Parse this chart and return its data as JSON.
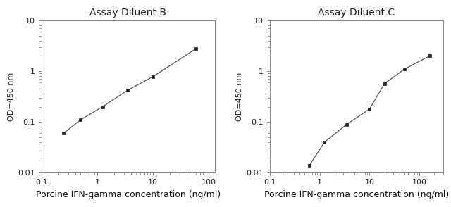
{
  "plot_B": {
    "title": "Assay Diluent B",
    "x": [
      0.25,
      0.5,
      1.25,
      3.5,
      10,
      60
    ],
    "y": [
      0.06,
      0.11,
      0.2,
      0.42,
      0.78,
      2.8
    ],
    "xlim": [
      0.15,
      130
    ],
    "ylim": [
      0.01,
      10
    ],
    "xlabel": "Porcine IFN-gamma concentration (ng/ml)",
    "ylabel": "OD=450 nm",
    "xticks": [
      0.1,
      1,
      10,
      100
    ],
    "xtick_labels": [
      "0.1",
      "1",
      "10",
      "100"
    ],
    "yticks": [
      0.01,
      0.1,
      1,
      10
    ],
    "ytick_labels": [
      "0.01",
      "0.1",
      "1",
      "10"
    ]
  },
  "plot_C": {
    "title": "Assay Diluent C",
    "x": [
      0.625,
      1.25,
      3.5,
      10,
      20,
      50,
      160
    ],
    "y": [
      0.014,
      0.04,
      0.09,
      0.18,
      0.57,
      1.1,
      2.0
    ],
    "xlim": [
      0.15,
      300
    ],
    "ylim": [
      0.01,
      10
    ],
    "xlabel": "Porcine IFN-gamma concentration (ng/ml)",
    "ylabel": "OD=450 nm",
    "xticks": [
      0.1,
      1,
      10,
      100
    ],
    "xtick_labels": [
      "0.1",
      "1",
      "10",
      "100"
    ],
    "yticks": [
      0.01,
      0.1,
      1,
      10
    ],
    "ytick_labels": [
      "0.01",
      "0.1",
      "1",
      "10"
    ]
  },
  "line_color": "#555555",
  "marker_color": "#222222",
  "bg_color": "#ffffff",
  "title_fontsize": 10,
  "label_fontsize": 8,
  "tick_fontsize": 8,
  "xlabel_fontsize": 9
}
